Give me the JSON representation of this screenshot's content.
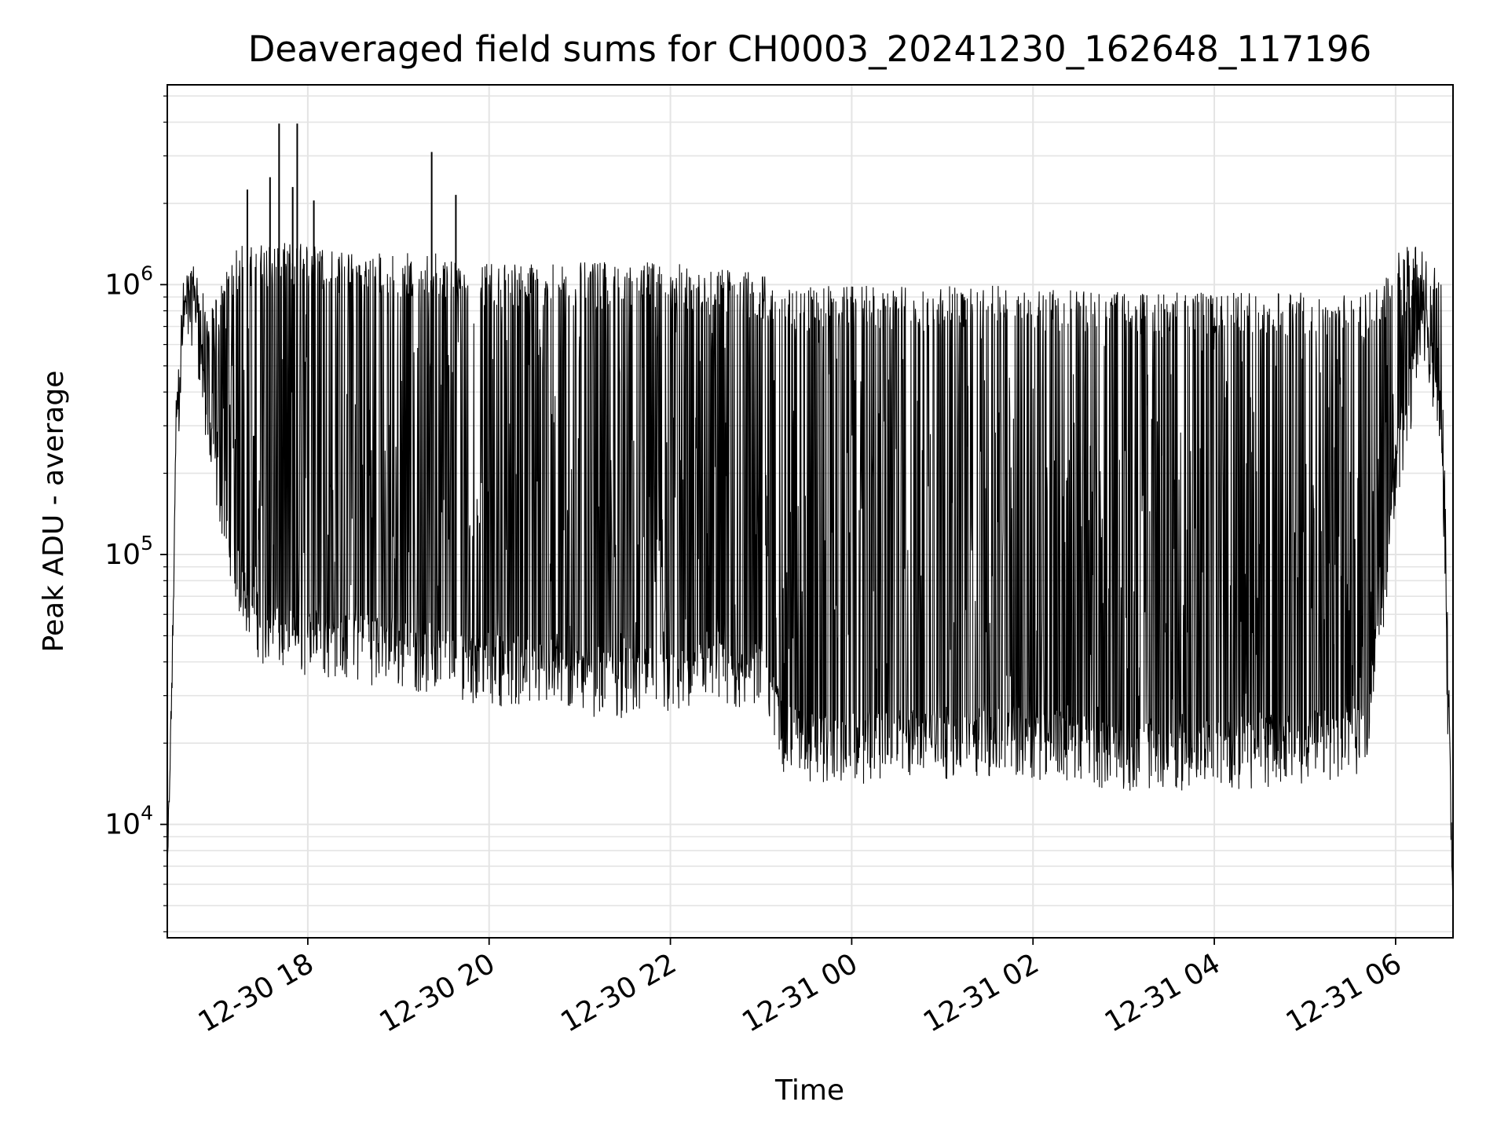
{
  "chart_data": {
    "type": "line",
    "title": "Deaveraged field sums for CH0003_20241230_162648_117196",
    "xlabel": "Time",
    "ylabel": "Peak ADU - average",
    "x_scale": "time",
    "y_scale": "log",
    "xlim": [
      "2024-12-30 16:27",
      "2024-12-31 06:38"
    ],
    "ylim": [
      3800,
      5500000
    ],
    "grid": true,
    "grid_minor": true,
    "line_color": "#000000",
    "grid_color": "#e4e4e4",
    "x_tick_labels": [
      "12-30 18",
      "12-30 20",
      "12-30 22",
      "12-31 00",
      "12-31 02",
      "12-31 04",
      "12-31 06"
    ],
    "y_tick_labels": [
      {
        "base": "10",
        "exp": "4"
      },
      {
        "base": "10",
        "exp": "5"
      },
      {
        "base": "10",
        "exp": "6"
      }
    ],
    "series": [
      {
        "x": [
          "2024-12-30 16:27",
          "2024-12-30 16:30",
          "2024-12-30 16:33",
          "2024-12-30 16:38",
          "2024-12-30 16:45",
          "2024-12-30 16:55",
          "2024-12-30 17:05",
          "2024-12-30 17:15",
          "2024-12-30 17:30",
          "2024-12-30 17:45",
          "2024-12-30 18:00",
          "2024-12-30 18:30",
          "2024-12-30 19:00",
          "2024-12-30 19:30",
          "2024-12-30 19:50",
          "2024-12-30 20:30",
          "2024-12-30 21:00",
          "2024-12-30 21:30",
          "2024-12-30 22:00",
          "2024-12-30 22:30",
          "2024-12-30 23:00",
          "2024-12-30 23:15",
          "2024-12-30 23:30",
          "2024-12-31 00:00",
          "2024-12-31 01:00",
          "2024-12-31 02:00",
          "2024-12-31 03:00",
          "2024-12-31 04:00",
          "2024-12-31 05:00",
          "2024-12-31 05:40",
          "2024-12-31 05:50",
          "2024-12-31 06:00",
          "2024-12-31 06:10",
          "2024-12-31 06:20",
          "2024-12-31 06:30",
          "2024-12-31 06:38"
        ],
        "y_lower": [
          6000,
          30000,
          300000,
          700000,
          900000,
          250000,
          150000,
          80000,
          55000,
          50000,
          50000,
          48000,
          45000,
          42000,
          40000,
          38000,
          36000,
          35000,
          35000,
          36000,
          38000,
          22000,
          20000,
          20000,
          21000,
          21000,
          19000,
          19000,
          20000,
          22000,
          60000,
          200000,
          400000,
          700000,
          300000,
          5000
        ],
        "y_upper": [
          6000,
          40000,
          400000,
          1000000,
          1100000,
          700000,
          1000000,
          1300000,
          1300000,
          1300000,
          1300000,
          1200000,
          1200000,
          1200000,
          1100000,
          1100000,
          1100000,
          1100000,
          1100000,
          1050000,
          1000000,
          900000,
          900000,
          900000,
          900000,
          900000,
          850000,
          850000,
          850000,
          850000,
          900000,
          1200000,
          1300000,
          1200000,
          1000000,
          5000
        ]
      }
    ],
    "spikes": [
      {
        "x": "2024-12-30 17:20",
        "y": 2250000
      },
      {
        "x": "2024-12-30 17:35",
        "y": 2500000
      },
      {
        "x": "2024-12-30 17:41",
        "y": 3950000
      },
      {
        "x": "2024-12-30 17:50",
        "y": 2300000
      },
      {
        "x": "2024-12-30 17:53",
        "y": 3950000
      },
      {
        "x": "2024-12-30 18:04",
        "y": 2050000
      },
      {
        "x": "2024-12-30 19:22",
        "y": 3100000
      },
      {
        "x": "2024-12-30 19:38",
        "y": 2150000
      }
    ]
  }
}
